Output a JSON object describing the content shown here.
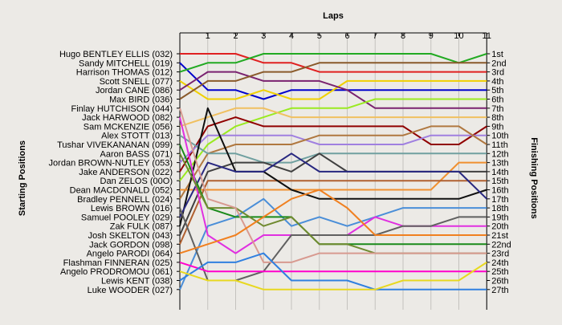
{
  "chart_data": {
    "type": "line",
    "title": "Laps",
    "ylabel_left": "Starting Positions",
    "ylabel_right": "Finishing Positions",
    "laps": [
      1,
      2,
      3,
      4,
      5,
      6,
      7,
      8,
      9,
      10,
      11
    ],
    "x_tick_labels": [
      "1",
      "2",
      "3",
      "4",
      "5",
      "6",
      "7",
      "8",
      "9",
      "10",
      "11"
    ],
    "finish_labels": [
      "1st",
      "2nd",
      "3rd",
      "4th",
      "5th",
      "6th",
      "7th",
      "8th",
      "9th",
      "10th",
      "11th",
      "12th",
      "13th",
      "14th",
      "15th",
      "16th",
      "17th",
      "18th",
      "19th",
      "20th",
      "21st",
      "22nd",
      "23rd",
      "24th",
      "25th",
      "26th",
      "27th"
    ],
    "grid": "vertical",
    "series": [
      {
        "name": "Hugo BENTLEY ELLIS (032)",
        "color": "#e02020",
        "positions": [
          1,
          1,
          1,
          2,
          2,
          3,
          3,
          3,
          3,
          3,
          3,
          3
        ]
      },
      {
        "name": "Sandy MITCHELL (019)",
        "color": "#0000cc",
        "positions": [
          2,
          5,
          5,
          6,
          5,
          5,
          5,
          5,
          5,
          5,
          5,
          5
        ]
      },
      {
        "name": "Harrison THOMAS (012)",
        "color": "#22aa22",
        "positions": [
          3,
          2,
          2,
          1,
          1,
          1,
          1,
          1,
          1,
          1,
          2,
          1
        ]
      },
      {
        "name": "Scott SNELL (077)",
        "color": "#f0d000",
        "positions": [
          4,
          6,
          6,
          5,
          6,
          6,
          4,
          4,
          4,
          4,
          4,
          4
        ]
      },
      {
        "name": "Jordan CANE (086)",
        "color": "#7a2270",
        "positions": [
          5,
          3,
          3,
          4,
          4,
          4,
          5,
          7,
          7,
          7,
          7,
          7
        ]
      },
      {
        "name": "Max BIRD (036)",
        "color": "#8a5a2a",
        "positions": [
          6,
          4,
          4,
          3,
          3,
          2,
          2,
          2,
          2,
          2,
          2,
          2
        ]
      },
      {
        "name": "Dan ZELOS (00O)",
        "color": "#9aea20",
        "positions": [
          15,
          11,
          9,
          8,
          7,
          7,
          7,
          6,
          6,
          6,
          6,
          6
        ]
      },
      {
        "name": "Sam MCKENZIE (056)",
        "color": "#f0c060",
        "positions": [
          9,
          8,
          7,
          7,
          8,
          8,
          8,
          8,
          8,
          8,
          8,
          8
        ]
      },
      {
        "name": "Jake ANDERSON (022)",
        "color": "#900000",
        "positions": [
          14,
          9,
          8,
          9,
          9,
          9,
          9,
          9,
          9,
          11,
          11,
          9
        ]
      },
      {
        "name": "Jordan BROWN-NUTLEY (053)",
        "color": "#a080e0",
        "positions": [
          13,
          10,
          10,
          10,
          10,
          11,
          11,
          11,
          11,
          10,
          10,
          10
        ]
      },
      {
        "name": "Bradley PENNELL (024)",
        "color": "#b07840",
        "positions": [
          17,
          12,
          11,
          11,
          11,
          10,
          10,
          10,
          10,
          9,
          9,
          11
        ]
      },
      {
        "name": "Alex STOTT (013)",
        "color": "#70a0a0",
        "positions": [
          10,
          12,
          12,
          13,
          13,
          12,
          12,
          12,
          12,
          12,
          12,
          12
        ]
      },
      {
        "name": "Dean MACDONALD (052)",
        "color": "#f09030",
        "positions": [
          16,
          16,
          16,
          16,
          16,
          16,
          16,
          16,
          16,
          16,
          13,
          13
        ]
      },
      {
        "name": "Josh SKELTON (043)",
        "color": "#404040",
        "positions": [
          21,
          14,
          13,
          13,
          14,
          12,
          14,
          14,
          14,
          14,
          14,
          14
        ]
      },
      {
        "name": "Jack GORDON (098)",
        "color": "#b06030",
        "positions": [
          22,
          15,
          15,
          15,
          15,
          15,
          15,
          15,
          15,
          15,
          15,
          15
        ]
      },
      {
        "name": "Zak FULK (087)",
        "color": "#101010",
        "positions": [
          20,
          7,
          14,
          14,
          16,
          17,
          17,
          17,
          17,
          17,
          17,
          16
        ]
      },
      {
        "name": "Samuel POOLEY (029)",
        "color": "#282880",
        "positions": [
          19,
          13,
          14,
          14,
          12,
          14,
          14,
          14,
          14,
          14,
          14,
          17
        ]
      },
      {
        "name": "Luke WOODER (027)",
        "color": "#4a8ed8",
        "positions": [
          27,
          20,
          19,
          17,
          20,
          19,
          20,
          19,
          18,
          18,
          18,
          18
        ]
      },
      {
        "name": "Tushar VIVEKANANAN (099)",
        "color": "#1a8a1a",
        "positions": [
          11,
          18,
          19,
          19,
          19,
          22,
          22,
          22,
          22,
          22,
          22,
          22
        ]
      },
      {
        "name": "Jack HARWOOD (082)",
        "color": "#e030e0",
        "positions": [
          8,
          21,
          23,
          21,
          21,
          21,
          21,
          19,
          20,
          20,
          20,
          20
        ]
      },
      {
        "name": "Lewis BROWN (016)",
        "color": "#606060",
        "positions": [
          18,
          26,
          26,
          25,
          21,
          21,
          21,
          21,
          20,
          20,
          19,
          19
        ]
      },
      {
        "name": "Aaron BASS (071)",
        "color": "#708a30",
        "positions": [
          12,
          18,
          18,
          20,
          19,
          22,
          22,
          23,
          23,
          23,
          23,
          23
        ]
      },
      {
        "name": "Finlay HUTCHISON (044)",
        "color": "#d89a90",
        "positions": [
          7,
          17,
          18,
          24,
          24,
          23,
          23,
          23,
          23,
          23,
          23,
          23
        ]
      },
      {
        "name": "Angelo PARODI (064)",
        "color": "#f08020",
        "positions": [
          23,
          22,
          21,
          19,
          17,
          16,
          18,
          21,
          21,
          21,
          21,
          21
        ]
      },
      {
        "name": "Flashman FINNERAN (025)",
        "color": "#ff00cc",
        "positions": [
          24,
          25,
          25,
          25,
          25,
          25,
          25,
          25,
          25,
          25,
          25,
          25
        ]
      },
      {
        "name": "Lewis KENT (038)",
        "color": "#3080e0",
        "positions": [
          26,
          24,
          24,
          23,
          26,
          26,
          26,
          27,
          27,
          27,
          27,
          27
        ]
      },
      {
        "name": "Angelo PRODROMOU (061)",
        "color": "#e8d820",
        "positions": [
          25,
          26,
          26,
          27,
          27,
          27,
          27,
          27,
          26,
          26,
          26,
          24
        ]
      }
    ]
  }
}
